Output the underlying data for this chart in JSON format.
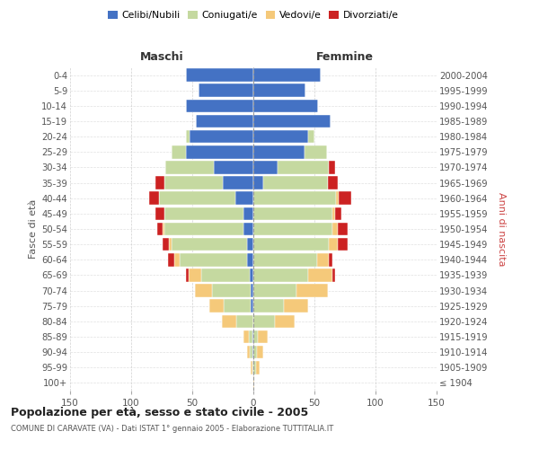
{
  "age_groups": [
    "100+",
    "95-99",
    "90-94",
    "85-89",
    "80-84",
    "75-79",
    "70-74",
    "65-69",
    "60-64",
    "55-59",
    "50-54",
    "45-49",
    "40-44",
    "35-39",
    "30-34",
    "25-29",
    "20-24",
    "15-19",
    "10-14",
    "5-9",
    "0-4"
  ],
  "birth_years": [
    "≤ 1904",
    "1905-1909",
    "1910-1914",
    "1915-1919",
    "1920-1924",
    "1925-1929",
    "1930-1934",
    "1935-1939",
    "1940-1944",
    "1945-1949",
    "1950-1954",
    "1955-1959",
    "1960-1964",
    "1965-1969",
    "1970-1974",
    "1975-1979",
    "1980-1984",
    "1985-1989",
    "1990-1994",
    "1995-1999",
    "2000-2004"
  ],
  "colors": {
    "celibi": "#4472c4",
    "coniugati": "#c5d9a0",
    "vedovi": "#f5c97a",
    "divorziati": "#cc2222"
  },
  "maschi": {
    "celibi": [
      0,
      0,
      1,
      1,
      0,
      2,
      2,
      3,
      5,
      5,
      8,
      8,
      15,
      25,
      32,
      55,
      52,
      47,
      55,
      45,
      55
    ],
    "coniugati": [
      0,
      1,
      2,
      3,
      14,
      22,
      32,
      40,
      55,
      62,
      65,
      65,
      62,
      48,
      40,
      12,
      3,
      0,
      0,
      0,
      0
    ],
    "vedovi": [
      0,
      1,
      2,
      4,
      12,
      12,
      14,
      10,
      5,
      2,
      1,
      0,
      0,
      0,
      0,
      0,
      0,
      0,
      0,
      0,
      0
    ],
    "divorziati": [
      0,
      0,
      0,
      0,
      0,
      0,
      0,
      2,
      5,
      5,
      5,
      7,
      8,
      7,
      0,
      0,
      0,
      0,
      0,
      0,
      0
    ]
  },
  "femmine": {
    "celibi": [
      0,
      0,
      0,
      0,
      0,
      0,
      0,
      0,
      0,
      0,
      0,
      0,
      0,
      8,
      20,
      42,
      45,
      63,
      53,
      43,
      55
    ],
    "coniugati": [
      0,
      2,
      3,
      4,
      18,
      25,
      35,
      45,
      52,
      62,
      65,
      65,
      68,
      53,
      42,
      18,
      5,
      0,
      0,
      0,
      0
    ],
    "vedovi": [
      1,
      3,
      5,
      8,
      16,
      20,
      26,
      20,
      10,
      7,
      4,
      2,
      2,
      0,
      0,
      0,
      0,
      0,
      0,
      0,
      0
    ],
    "divorziati": [
      0,
      0,
      0,
      0,
      0,
      0,
      0,
      2,
      3,
      8,
      8,
      5,
      10,
      8,
      5,
      0,
      0,
      0,
      0,
      0,
      0
    ]
  },
  "xlim": 150,
  "title": "Popolazione per età, sesso e stato civile - 2005",
  "subtitle": "COMUNE DI CARAVATE (VA) - Dati ISTAT 1° gennaio 2005 - Elaborazione TUTTITALIA.IT",
  "ylabel_left": "Fasce di età",
  "ylabel_right": "Anni di nascita",
  "header_left": "Maschi",
  "header_right": "Femmine",
  "bg_color": "#ffffff",
  "grid_color": "#cccccc"
}
